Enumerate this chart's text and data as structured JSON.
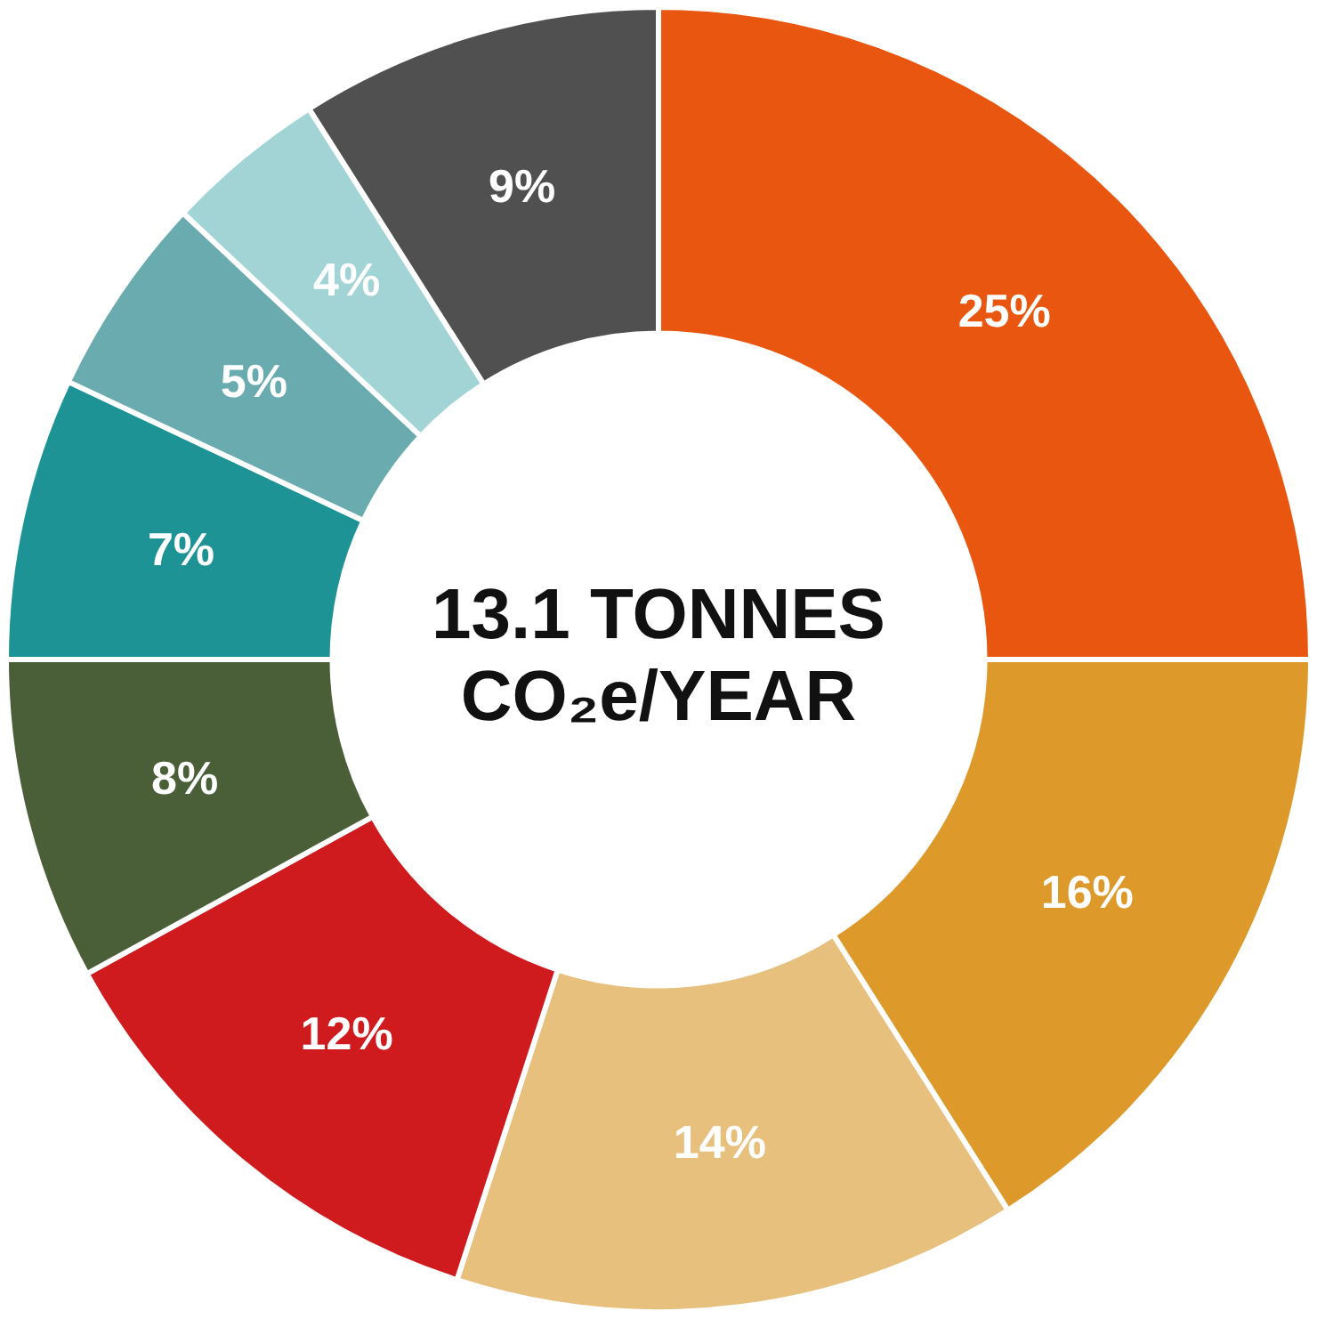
{
  "chart_data": {
    "type": "donut",
    "title": "13.1 TONNES CO₂e/YEAR",
    "categories": [
      null,
      null,
      null,
      null,
      null,
      null,
      null,
      null,
      null
    ],
    "values": [
      25,
      16,
      14,
      12,
      8,
      7,
      5,
      4,
      9
    ],
    "value_labels": [
      "25%",
      "16%",
      "14%",
      "12%",
      "8%",
      "7%",
      "5%",
      "4%",
      "9%"
    ],
    "colors": [
      "#e8560f",
      "#dd9a2b",
      "#e8c07e",
      "#cf1a1e",
      "#4a5e38",
      "#1e9396",
      "#6aabb0",
      "#a2d4d6",
      "#505050"
    ],
    "legend": false
  }
}
